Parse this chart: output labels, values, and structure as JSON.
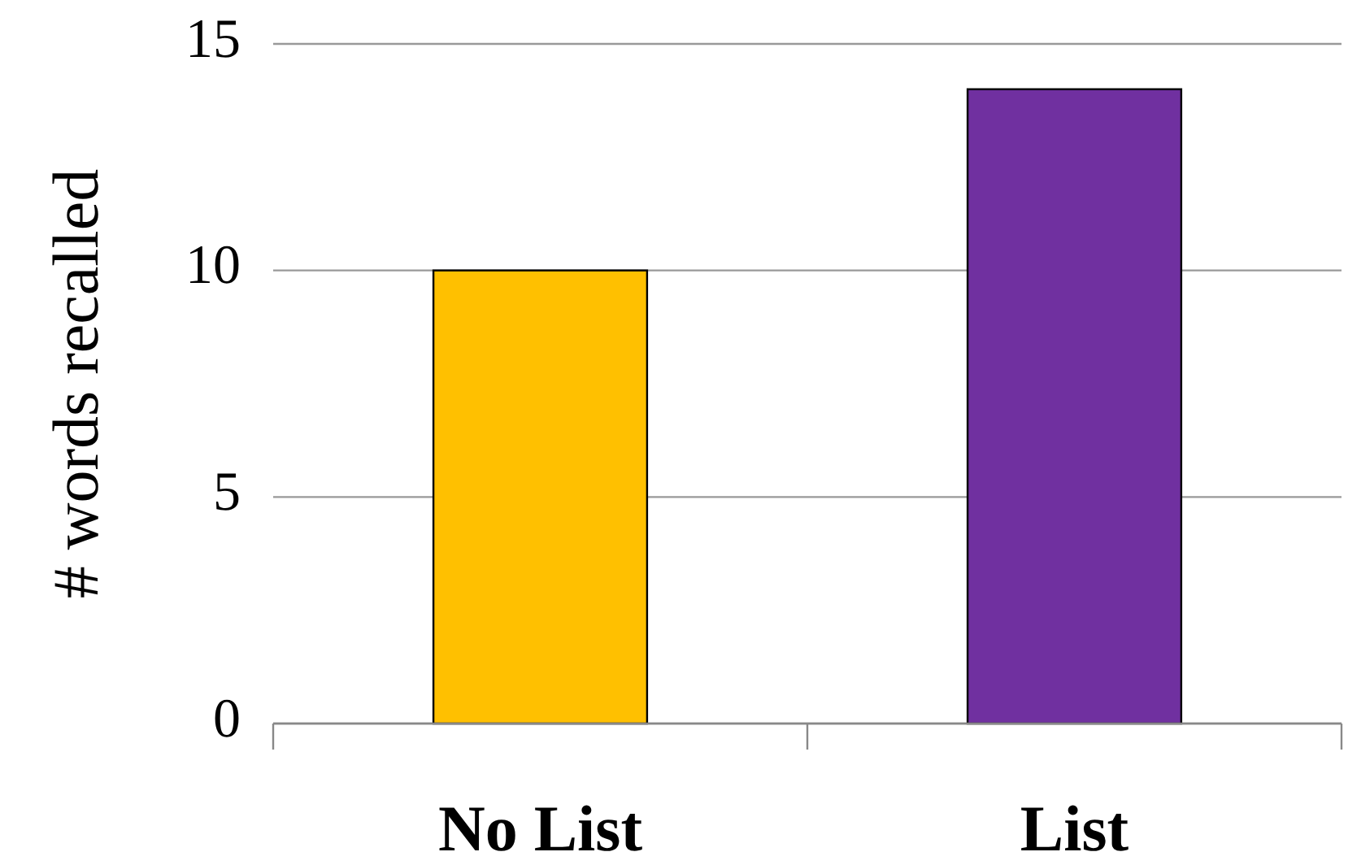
{
  "chart_data": {
    "type": "bar",
    "ylabel": "# words recalled",
    "categories": [
      "No List",
      "List"
    ],
    "values": [
      10,
      14
    ],
    "colors": [
      "#ffc000",
      "#7030a0"
    ],
    "ylim": [
      0,
      15
    ],
    "yticks": [
      0,
      5,
      10,
      15
    ],
    "grid": "y"
  }
}
